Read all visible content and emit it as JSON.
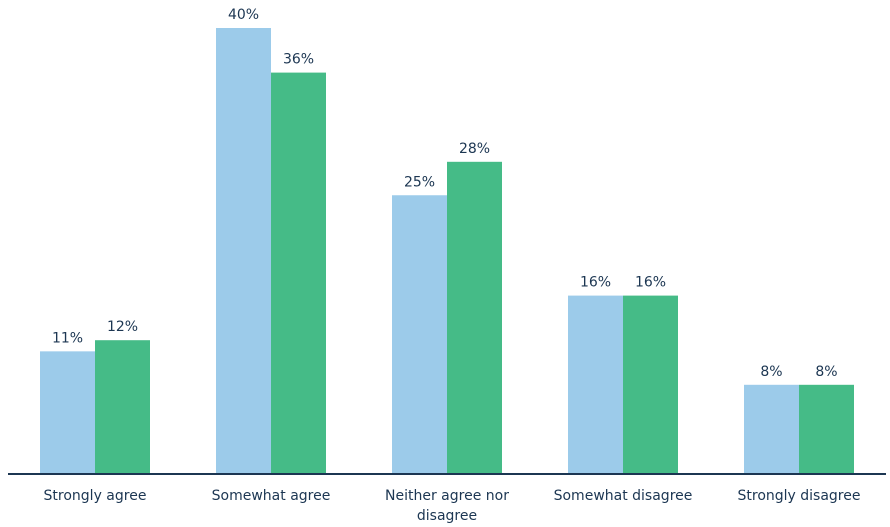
{
  "chart_data": {
    "type": "bar",
    "title": "",
    "xlabel": "",
    "ylabel": "",
    "ylim": [
      0,
      40
    ],
    "grid": false,
    "categories": [
      [
        "Strongly agree"
      ],
      [
        "Somewhat agree"
      ],
      [
        "Neither agree nor",
        "disagree"
      ],
      [
        "Somewhat disagree"
      ],
      [
        "Strongly disagree"
      ]
    ],
    "series": [
      {
        "color": "#9ccbea",
        "values": [
          11,
          40,
          25,
          16,
          8
        ],
        "labels": [
          "11%",
          "40%",
          "25%",
          "16%",
          "8%"
        ]
      },
      {
        "color": "#45bb87",
        "values": [
          12,
          36,
          28,
          16,
          8
        ],
        "labels": [
          "12%",
          "36%",
          "28%",
          "16%",
          "8%"
        ]
      }
    ],
    "axis_color": "#1c3652"
  }
}
